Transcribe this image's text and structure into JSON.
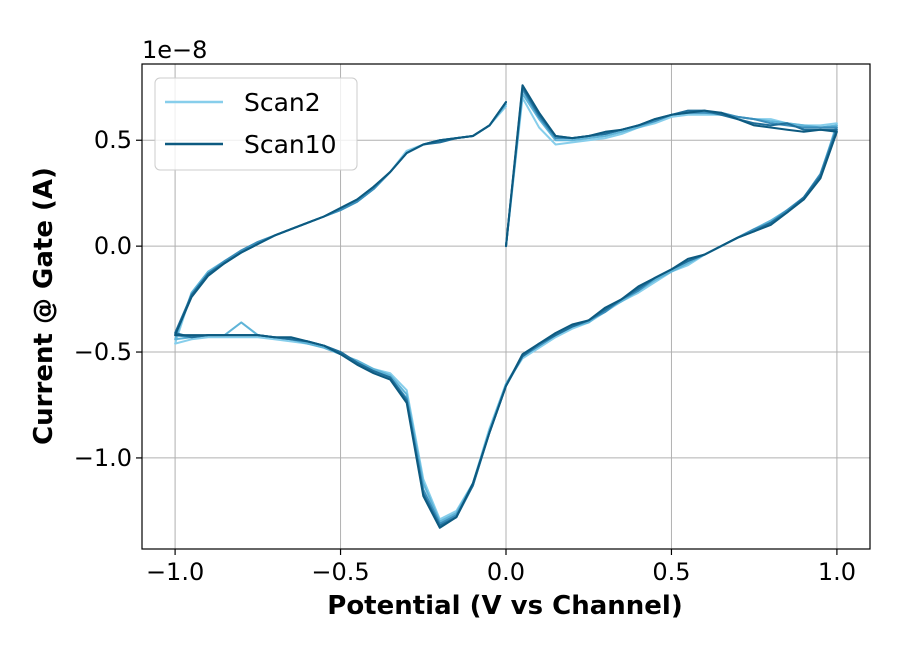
{
  "chart_data": {
    "type": "line",
    "title": "",
    "xlabel": "Potential (V vs Channel)",
    "ylabel": "Current @ Gate (A)",
    "offset_text": "1e−8",
    "xlim": [
      -1.1,
      1.1
    ],
    "ylim": [
      -1.43,
      0.86
    ],
    "grid": true,
    "legend_position": "top-left",
    "x_ticks": [
      {
        "value": -1.0,
        "label": "−1.0"
      },
      {
        "value": -0.5,
        "label": "−0.5"
      },
      {
        "value": 0.0,
        "label": "0.0"
      },
      {
        "value": 0.5,
        "label": "0.5"
      },
      {
        "value": 1.0,
        "label": "1.0"
      }
    ],
    "y_ticks": [
      {
        "value": -1.0,
        "label": "−1.0"
      },
      {
        "value": -0.5,
        "label": "−0.5"
      },
      {
        "value": 0.0,
        "label": "0.0"
      },
      {
        "value": 0.5,
        "label": "0.5"
      }
    ],
    "series": [
      {
        "name": "Scan2",
        "color": "#87ceeb",
        "in_legend": true,
        "x": [
          0.0,
          0.05,
          0.1,
          0.15,
          0.2,
          0.25,
          0.3,
          0.35,
          0.4,
          0.45,
          0.5,
          0.55,
          0.6,
          0.65,
          0.7,
          0.75,
          0.8,
          0.85,
          0.9,
          0.95,
          1.0,
          0.95,
          0.9,
          0.85,
          0.8,
          0.75,
          0.7,
          0.65,
          0.6,
          0.55,
          0.5,
          0.45,
          0.4,
          0.35,
          0.3,
          0.25,
          0.2,
          0.15,
          0.1,
          0.05,
          0.0,
          -0.05,
          -0.1,
          -0.15,
          -0.2,
          -0.25,
          -0.3,
          -0.35,
          -0.4,
          -0.45,
          -0.5,
          -0.55,
          -0.6,
          -0.65,
          -0.7,
          -0.75,
          -0.8,
          -0.85,
          -0.9,
          -0.95,
          -1.0,
          -0.95,
          -0.9,
          -0.85,
          -0.8,
          -0.75,
          -0.7,
          -0.65,
          -0.6,
          -0.55,
          -0.5,
          -0.45,
          -0.4,
          -0.35,
          -0.3,
          -0.25,
          -0.2,
          -0.15,
          -0.1,
          -0.05,
          0.0
        ],
        "y": [
          0.0,
          0.7,
          0.56,
          0.48,
          0.49,
          0.5,
          0.51,
          0.53,
          0.56,
          0.58,
          0.61,
          0.62,
          0.62,
          0.62,
          0.61,
          0.6,
          0.6,
          0.58,
          0.57,
          0.57,
          0.58,
          0.33,
          0.22,
          0.17,
          0.12,
          0.08,
          0.04,
          0.0,
          -0.04,
          -0.09,
          -0.12,
          -0.17,
          -0.22,
          -0.26,
          -0.31,
          -0.36,
          -0.39,
          -0.43,
          -0.48,
          -0.53,
          -0.65,
          -0.86,
          -1.12,
          -1.25,
          -1.29,
          -1.1,
          -0.68,
          -0.6,
          -0.58,
          -0.55,
          -0.51,
          -0.47,
          -0.46,
          -0.45,
          -0.44,
          -0.43,
          -0.43,
          -0.43,
          -0.43,
          -0.44,
          -0.46,
          -0.22,
          -0.12,
          -0.08,
          -0.03,
          0.01,
          0.05,
          0.08,
          0.11,
          0.14,
          0.17,
          0.21,
          0.27,
          0.35,
          0.45,
          0.48,
          0.5,
          0.51,
          0.52,
          0.57,
          0.66
        ]
      },
      {
        "name": "",
        "color": "#5fb4d8",
        "in_legend": false,
        "x": [
          0.0,
          0.05,
          0.1,
          0.15,
          0.2,
          0.25,
          0.3,
          0.35,
          0.4,
          0.45,
          0.5,
          0.55,
          0.6,
          0.65,
          0.7,
          0.75,
          0.8,
          0.85,
          0.9,
          0.95,
          1.0,
          0.95,
          0.9,
          0.85,
          0.8,
          0.75,
          0.7,
          0.65,
          0.6,
          0.55,
          0.5,
          0.45,
          0.4,
          0.35,
          0.3,
          0.25,
          0.2,
          0.15,
          0.1,
          0.05,
          0.0,
          -0.05,
          -0.1,
          -0.15,
          -0.2,
          -0.25,
          -0.3,
          -0.35,
          -0.4,
          -0.45,
          -0.5,
          -0.55,
          -0.6,
          -0.65,
          -0.7,
          -0.75,
          -0.8,
          -0.85,
          -0.9,
          -0.95,
          -1.0,
          -0.95,
          -0.9,
          -0.85,
          -0.8,
          -0.75,
          -0.7,
          -0.65,
          -0.6,
          -0.55,
          -0.5,
          -0.45,
          -0.4,
          -0.35,
          -0.3,
          -0.25,
          -0.2,
          -0.15,
          -0.1,
          -0.05,
          0.0
        ],
        "y": [
          0.0,
          0.72,
          0.6,
          0.5,
          0.5,
          0.51,
          0.52,
          0.54,
          0.56,
          0.59,
          0.62,
          0.63,
          0.63,
          0.62,
          0.61,
          0.6,
          0.59,
          0.58,
          0.57,
          0.56,
          0.57,
          0.34,
          0.23,
          0.17,
          0.12,
          0.08,
          0.04,
          0.0,
          -0.04,
          -0.08,
          -0.12,
          -0.16,
          -0.21,
          -0.26,
          -0.3,
          -0.36,
          -0.38,
          -0.42,
          -0.47,
          -0.52,
          -0.65,
          -0.87,
          -1.12,
          -1.26,
          -1.3,
          -1.12,
          -0.7,
          -0.61,
          -0.58,
          -0.54,
          -0.51,
          -0.48,
          -0.46,
          -0.44,
          -0.43,
          -0.42,
          -0.36,
          -0.42,
          -0.42,
          -0.43,
          -0.44,
          -0.22,
          -0.12,
          -0.07,
          -0.03,
          0.01,
          0.05,
          0.08,
          0.11,
          0.14,
          0.17,
          0.21,
          0.27,
          0.35,
          0.44,
          0.48,
          0.5,
          0.51,
          0.52,
          0.57,
          0.67
        ]
      },
      {
        "name": "",
        "color": "#3a8dba",
        "in_legend": false,
        "x": [
          0.0,
          0.05,
          0.1,
          0.15,
          0.2,
          0.25,
          0.3,
          0.35,
          0.4,
          0.45,
          0.5,
          0.55,
          0.6,
          0.65,
          0.7,
          0.75,
          0.8,
          0.85,
          0.9,
          0.95,
          1.0,
          0.95,
          0.9,
          0.85,
          0.8,
          0.75,
          0.7,
          0.65,
          0.6,
          0.55,
          0.5,
          0.45,
          0.4,
          0.35,
          0.3,
          0.25,
          0.2,
          0.15,
          0.1,
          0.05,
          0.0,
          -0.05,
          -0.1,
          -0.15,
          -0.2,
          -0.25,
          -0.3,
          -0.35,
          -0.4,
          -0.45,
          -0.5,
          -0.55,
          -0.6,
          -0.65,
          -0.7,
          -0.75,
          -0.8,
          -0.85,
          -0.9,
          -0.95,
          -1.0,
          -0.95,
          -0.9,
          -0.85,
          -0.8,
          -0.75,
          -0.7,
          -0.65,
          -0.6,
          -0.55,
          -0.5,
          -0.45,
          -0.4,
          -0.35,
          -0.3,
          -0.25,
          -0.2,
          -0.15,
          -0.1,
          -0.05,
          0.0
        ],
        "y": [
          0.0,
          0.74,
          0.61,
          0.51,
          0.51,
          0.52,
          0.53,
          0.55,
          0.57,
          0.59,
          0.62,
          0.63,
          0.63,
          0.63,
          0.61,
          0.6,
          0.58,
          0.57,
          0.56,
          0.56,
          0.56,
          0.34,
          0.23,
          0.17,
          0.11,
          0.08,
          0.04,
          0.0,
          -0.04,
          -0.07,
          -0.11,
          -0.15,
          -0.21,
          -0.25,
          -0.31,
          -0.35,
          -0.38,
          -0.42,
          -0.47,
          -0.52,
          -0.66,
          -0.88,
          -1.13,
          -1.27,
          -1.31,
          -1.15,
          -0.72,
          -0.62,
          -0.59,
          -0.55,
          -0.5,
          -0.47,
          -0.45,
          -0.44,
          -0.43,
          -0.42,
          -0.42,
          -0.42,
          -0.42,
          -0.43,
          -0.42,
          -0.23,
          -0.13,
          -0.07,
          -0.02,
          0.02,
          0.05,
          0.08,
          0.11,
          0.14,
          0.17,
          0.21,
          0.27,
          0.35,
          0.44,
          0.48,
          0.5,
          0.51,
          0.52,
          0.57,
          0.68
        ]
      },
      {
        "name": "",
        "color": "#1f6e99",
        "in_legend": false,
        "x": [
          0.0,
          0.05,
          0.1,
          0.15,
          0.2,
          0.25,
          0.3,
          0.35,
          0.4,
          0.45,
          0.5,
          0.55,
          0.6,
          0.65,
          0.7,
          0.75,
          0.8,
          0.85,
          0.9,
          0.95,
          1.0,
          0.95,
          0.9,
          0.85,
          0.8,
          0.75,
          0.7,
          0.65,
          0.6,
          0.55,
          0.5,
          0.45,
          0.4,
          0.35,
          0.3,
          0.25,
          0.2,
          0.15,
          0.1,
          0.05,
          0.0,
          -0.05,
          -0.1,
          -0.15,
          -0.2,
          -0.25,
          -0.3,
          -0.35,
          -0.4,
          -0.45,
          -0.5,
          -0.55,
          -0.6,
          -0.65,
          -0.7,
          -0.75,
          -0.8,
          -0.85,
          -0.9,
          -0.95,
          -1.0,
          -0.95,
          -0.9,
          -0.85,
          -0.8,
          -0.75,
          -0.7,
          -0.65,
          -0.6,
          -0.55,
          -0.5,
          -0.45,
          -0.4,
          -0.35,
          -0.3,
          -0.25,
          -0.2,
          -0.15,
          -0.1,
          -0.05,
          0.0
        ],
        "y": [
          0.0,
          0.75,
          0.62,
          0.52,
          0.51,
          0.52,
          0.53,
          0.55,
          0.57,
          0.6,
          0.62,
          0.64,
          0.64,
          0.62,
          0.6,
          0.58,
          0.57,
          0.58,
          0.55,
          0.55,
          0.55,
          0.33,
          0.23,
          0.16,
          0.11,
          0.07,
          0.04,
          0.0,
          -0.04,
          -0.07,
          -0.11,
          -0.15,
          -0.2,
          -0.25,
          -0.3,
          -0.35,
          -0.38,
          -0.42,
          -0.46,
          -0.52,
          -0.66,
          -0.88,
          -1.13,
          -1.28,
          -1.32,
          -1.17,
          -0.73,
          -0.62,
          -0.59,
          -0.55,
          -0.5,
          -0.47,
          -0.45,
          -0.44,
          -0.43,
          -0.42,
          -0.42,
          -0.42,
          -0.42,
          -0.43,
          -0.41,
          -0.23,
          -0.13,
          -0.08,
          -0.03,
          0.01,
          0.05,
          0.08,
          0.11,
          0.14,
          0.18,
          0.22,
          0.28,
          0.35,
          0.44,
          0.48,
          0.49,
          0.51,
          0.52,
          0.57,
          0.68
        ]
      },
      {
        "name": "Scan10",
        "color": "#0d5a80",
        "in_legend": true,
        "x": [
          0.0,
          0.05,
          0.1,
          0.15,
          0.2,
          0.25,
          0.3,
          0.35,
          0.4,
          0.45,
          0.5,
          0.55,
          0.6,
          0.65,
          0.7,
          0.75,
          0.8,
          0.85,
          0.9,
          0.95,
          1.0,
          0.95,
          0.9,
          0.85,
          0.8,
          0.75,
          0.7,
          0.65,
          0.6,
          0.55,
          0.5,
          0.45,
          0.4,
          0.35,
          0.3,
          0.25,
          0.2,
          0.15,
          0.1,
          0.05,
          0.0,
          -0.05,
          -0.1,
          -0.15,
          -0.2,
          -0.25,
          -0.3,
          -0.35,
          -0.4,
          -0.45,
          -0.5,
          -0.55,
          -0.6,
          -0.65,
          -0.7,
          -0.75,
          -0.8,
          -0.85,
          -0.9,
          -0.95,
          -1.0,
          -0.95,
          -0.9,
          -0.85,
          -0.8,
          -0.75,
          -0.7,
          -0.65,
          -0.6,
          -0.55,
          -0.5,
          -0.45,
          -0.4,
          -0.35,
          -0.3,
          -0.25,
          -0.2,
          -0.15,
          -0.1,
          -0.05,
          0.0
        ],
        "y": [
          0.0,
          0.76,
          0.63,
          0.52,
          0.51,
          0.52,
          0.54,
          0.55,
          0.57,
          0.6,
          0.62,
          0.63,
          0.64,
          0.63,
          0.6,
          0.57,
          0.56,
          0.55,
          0.54,
          0.55,
          0.54,
          0.32,
          0.22,
          0.16,
          0.1,
          0.07,
          0.04,
          0.0,
          -0.04,
          -0.06,
          -0.11,
          -0.15,
          -0.19,
          -0.25,
          -0.29,
          -0.35,
          -0.37,
          -0.41,
          -0.46,
          -0.51,
          -0.66,
          -0.88,
          -1.12,
          -1.28,
          -1.33,
          -1.18,
          -0.74,
          -0.63,
          -0.6,
          -0.56,
          -0.51,
          -0.47,
          -0.45,
          -0.43,
          -0.43,
          -0.42,
          -0.42,
          -0.42,
          -0.42,
          -0.42,
          -0.42,
          -0.24,
          -0.14,
          -0.08,
          -0.03,
          0.01,
          0.05,
          0.08,
          0.11,
          0.14,
          0.18,
          0.22,
          0.28,
          0.35,
          0.44,
          0.48,
          0.5,
          0.51,
          0.52,
          0.57,
          0.68
        ]
      }
    ]
  }
}
